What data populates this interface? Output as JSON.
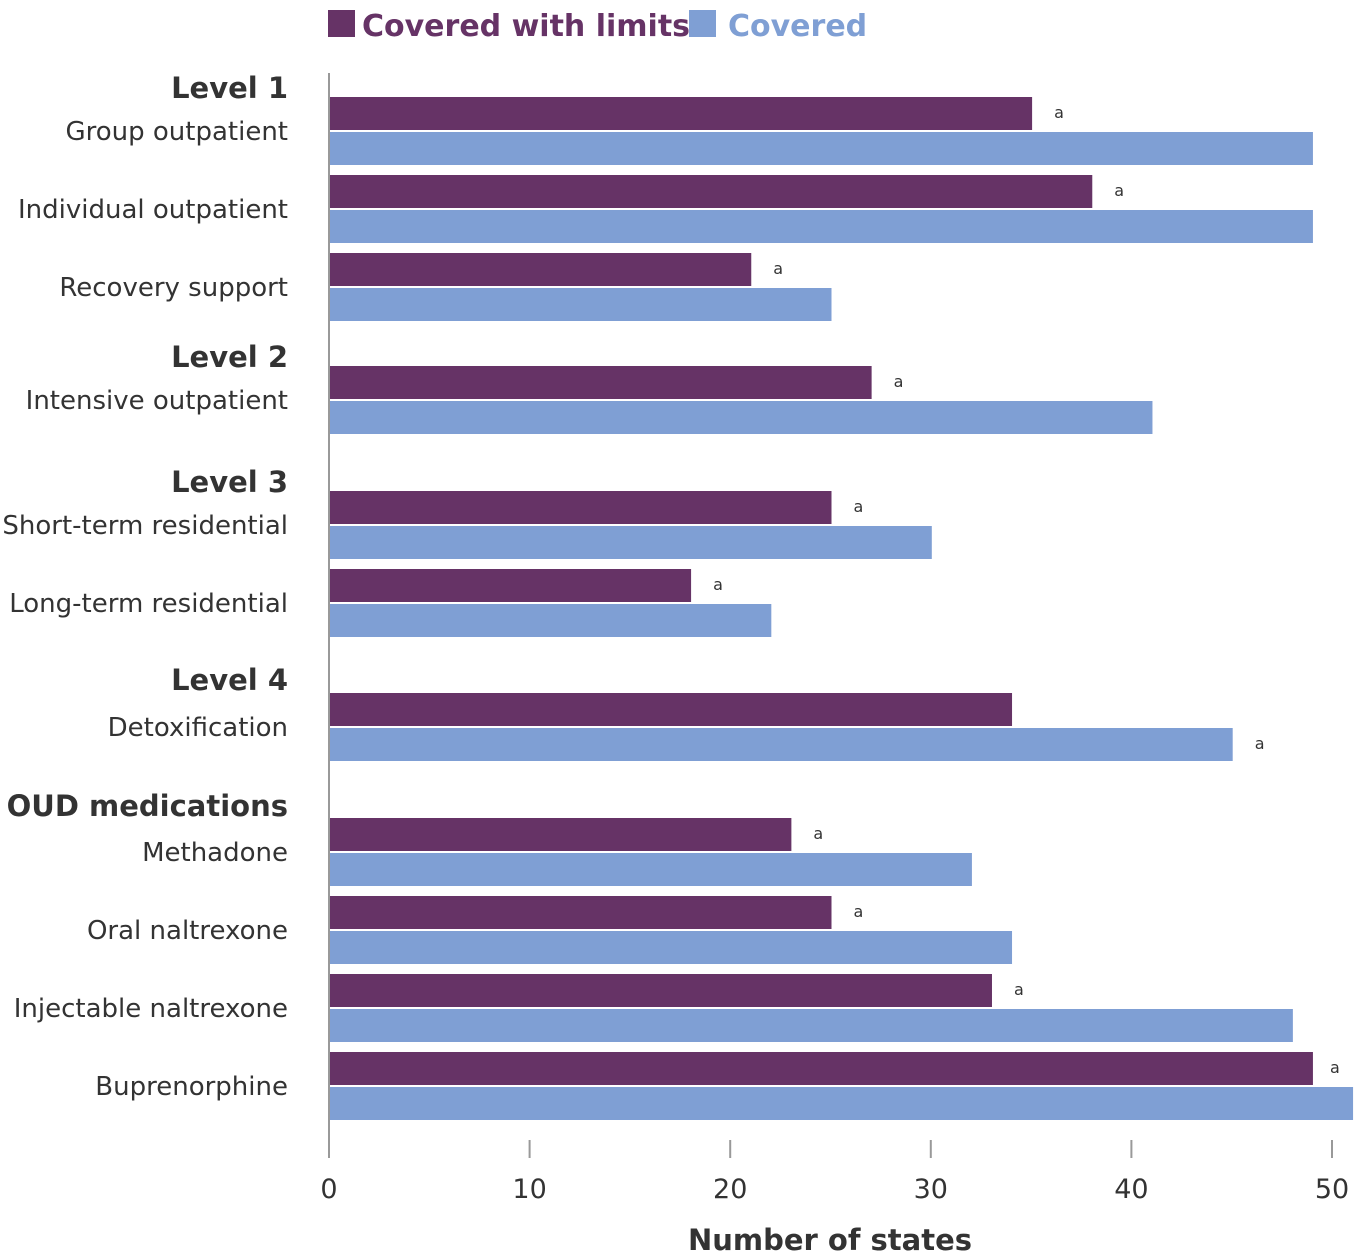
{
  "chart_data": {
    "type": "bar",
    "orientation": "horizontal",
    "xlabel": "Number of states",
    "xlim": [
      0,
      50
    ],
    "xticks": [
      "0",
      "10",
      "20",
      "30",
      "40",
      "50"
    ],
    "legend_position": "top",
    "grid": false,
    "groups": [
      {
        "label": "Level 1",
        "categories": [
          "Group outpatient",
          "Individual outpatient",
          "Recovery support"
        ]
      },
      {
        "label": "Level 2",
        "categories": [
          "Intensive outpatient"
        ]
      },
      {
        "label": "Level 3",
        "categories": [
          "Short-term residential",
          "Long-term residential"
        ]
      },
      {
        "label": "Level 4",
        "categories": [
          "Detoxification"
        ]
      },
      {
        "label": "OUD medications",
        "categories": [
          "Methadone",
          "Oral naltrexone",
          "Injectable naltrexone",
          "Buprenorphine"
        ]
      }
    ],
    "categories": [
      "Group outpatient",
      "Individual outpatient",
      "Recovery support",
      "Intensive outpatient",
      "Short-term residential",
      "Long-term residential",
      "Detoxification",
      "Methadone",
      "Oral naltrexone",
      "Injectable naltrexone",
      "Buprenorphine"
    ],
    "series": [
      {
        "name": "Covered with limits",
        "color": "#663366",
        "values": [
          35,
          38,
          21,
          27,
          25,
          18,
          34,
          23,
          25,
          33,
          49
        ]
      },
      {
        "name": "Covered",
        "color": "#7f9fd4",
        "values": [
          49,
          49,
          25,
          41,
          30,
          22,
          45,
          32,
          34,
          48,
          51
        ]
      }
    ],
    "annotations": [
      {
        "category": "Group outpatient",
        "series": "Covered with limits",
        "text": "a"
      },
      {
        "category": "Individual outpatient",
        "series": "Covered with limits",
        "text": "a"
      },
      {
        "category": "Recovery support",
        "series": "Covered with limits",
        "text": "a"
      },
      {
        "category": "Intensive outpatient",
        "series": "Covered with limits",
        "text": "a"
      },
      {
        "category": "Short-term residential",
        "series": "Covered with limits",
        "text": "a"
      },
      {
        "category": "Long-term residential",
        "series": "Covered with limits",
        "text": "a"
      },
      {
        "category": "Detoxification",
        "series": "Covered",
        "text": "a"
      },
      {
        "category": "Methadone",
        "series": "Covered with limits",
        "text": "a"
      },
      {
        "category": "Oral naltrexone",
        "series": "Covered with limits",
        "text": "a"
      },
      {
        "category": "Injectable naltrexone",
        "series": "Covered with limits",
        "text": "a"
      },
      {
        "category": "Buprenorphine",
        "series": "Covered with limits",
        "text": "a"
      }
    ]
  }
}
